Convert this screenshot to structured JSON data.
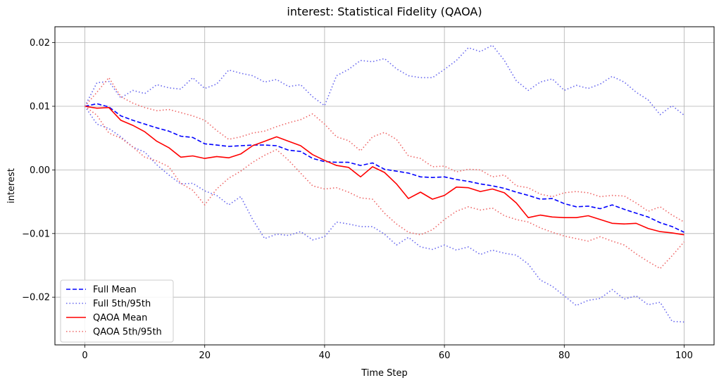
{
  "chart_data": {
    "type": "line",
    "title": "interest: Statistical Fidelity (QAOA)",
    "xlabel": "Time Step",
    "ylabel": "interest",
    "xlim": [
      -5,
      105
    ],
    "ylim": [
      -0.0275,
      0.0225
    ],
    "xticks": [
      0,
      20,
      40,
      60,
      80,
      100
    ],
    "xtick_labels": [
      "0",
      "20",
      "40",
      "60",
      "80",
      "100"
    ],
    "yticks": [
      -0.02,
      -0.01,
      0.0,
      0.01,
      0.02
    ],
    "ytick_labels": [
      "−0.02",
      "−0.01",
      "0.00",
      "0.01",
      "0.02"
    ],
    "grid": true,
    "legend_position": "lower-left",
    "series": [
      {
        "name": "Full Mean",
        "color": "#0000ff",
        "style": "dashed",
        "x": [
          0,
          2,
          4,
          6,
          8,
          10,
          12,
          14,
          16,
          18,
          20,
          22,
          24,
          26,
          28,
          30,
          32,
          34,
          36,
          38,
          40,
          42,
          44,
          46,
          48,
          50,
          52,
          54,
          56,
          58,
          60,
          62,
          64,
          66,
          68,
          70,
          72,
          74,
          76,
          78,
          80,
          82,
          84,
          86,
          88,
          90,
          92,
          94,
          96,
          98,
          100
        ],
        "values": [
          0.01,
          0.0104,
          0.0099,
          0.0085,
          0.0078,
          0.0072,
          0.0066,
          0.0061,
          0.0053,
          0.0051,
          0.0041,
          0.0039,
          0.0037,
          0.0038,
          0.0039,
          0.0039,
          0.0038,
          0.0031,
          0.0029,
          0.0018,
          0.0013,
          0.0012,
          0.0012,
          0.0007,
          0.0011,
          0.0001,
          -0.0002,
          -0.0005,
          -0.0011,
          -0.0012,
          -0.0011,
          -0.0015,
          -0.0018,
          -0.0022,
          -0.0025,
          -0.0029,
          -0.0035,
          -0.004,
          -0.0046,
          -0.0045,
          -0.0053,
          -0.0058,
          -0.0057,
          -0.0061,
          -0.0055,
          -0.0062,
          -0.0068,
          -0.0074,
          -0.0083,
          -0.0089,
          -0.0098
        ]
      },
      {
        "name": "Full 5th/95th",
        "color": "#6666ee",
        "style": "dotted",
        "x": [
          0,
          2,
          4,
          6,
          8,
          10,
          12,
          14,
          16,
          18,
          20,
          22,
          24,
          26,
          28,
          30,
          32,
          34,
          36,
          38,
          40,
          42,
          44,
          46,
          48,
          50,
          52,
          54,
          56,
          58,
          60,
          62,
          64,
          66,
          68,
          70,
          72,
          74,
          76,
          78,
          80,
          82,
          84,
          86,
          88,
          90,
          92,
          94,
          96,
          98,
          100
        ],
        "values": [
          0.01,
          0.0137,
          0.0139,
          0.0113,
          0.0125,
          0.012,
          0.0134,
          0.0129,
          0.0127,
          0.0145,
          0.0128,
          0.0135,
          0.0157,
          0.0152,
          0.0148,
          0.0138,
          0.0142,
          0.0131,
          0.0134,
          0.0115,
          0.0101,
          0.0148,
          0.0158,
          0.0172,
          0.017,
          0.0175,
          0.0159,
          0.0148,
          0.0145,
          0.0145,
          0.0158,
          0.0172,
          0.0192,
          0.0186,
          0.0196,
          0.0172,
          0.014,
          0.0125,
          0.0138,
          0.0143,
          0.0125,
          0.0133,
          0.0128,
          0.0135,
          0.0147,
          0.0138,
          0.0122,
          0.011,
          0.0087,
          0.0101,
          0.0086
        ],
        "values_lower": [
          0.01,
          0.0072,
          0.0065,
          0.0052,
          0.0036,
          0.0028,
          0.0008,
          -0.0008,
          -0.0022,
          -0.0021,
          -0.0033,
          -0.004,
          -0.0055,
          -0.0042,
          -0.0078,
          -0.0108,
          -0.0101,
          -0.0103,
          -0.0097,
          -0.011,
          -0.0105,
          -0.0082,
          -0.0085,
          -0.0089,
          -0.0089,
          -0.0101,
          -0.0118,
          -0.0106,
          -0.0121,
          -0.0125,
          -0.0118,
          -0.0126,
          -0.0121,
          -0.0133,
          -0.0126,
          -0.0131,
          -0.0134,
          -0.0148,
          -0.0173,
          -0.0183,
          -0.0198,
          -0.0213,
          -0.0205,
          -0.0202,
          -0.0188,
          -0.0203,
          -0.0198,
          -0.0212,
          -0.0208,
          -0.0238,
          -0.0239
        ]
      },
      {
        "name": "QAOA Mean",
        "color": "#ff0000",
        "style": "solid",
        "x": [
          0,
          2,
          4,
          6,
          8,
          10,
          12,
          14,
          16,
          18,
          20,
          22,
          24,
          26,
          28,
          30,
          32,
          34,
          36,
          38,
          40,
          42,
          44,
          46,
          48,
          50,
          52,
          54,
          56,
          58,
          60,
          62,
          64,
          66,
          68,
          70,
          72,
          74,
          76,
          78,
          80,
          82,
          84,
          86,
          88,
          90,
          92,
          94,
          96,
          98,
          100
        ],
        "values": [
          0.01,
          0.0097,
          0.0098,
          0.0078,
          0.007,
          0.006,
          0.0045,
          0.0035,
          0.002,
          0.0022,
          0.0018,
          0.0021,
          0.0019,
          0.0025,
          0.0038,
          0.0045,
          0.0052,
          0.0045,
          0.0038,
          0.0024,
          0.0015,
          0.0007,
          0.0004,
          -0.0011,
          0.0005,
          -0.0004,
          -0.0022,
          -0.0045,
          -0.0035,
          -0.0046,
          -0.004,
          -0.0027,
          -0.0028,
          -0.0034,
          -0.003,
          -0.0036,
          -0.0052,
          -0.0075,
          -0.0071,
          -0.0074,
          -0.0075,
          -0.0075,
          -0.0072,
          -0.0078,
          -0.0084,
          -0.0085,
          -0.0084,
          -0.0092,
          -0.0097,
          -0.0099,
          -0.0102
        ]
      },
      {
        "name": "QAOA 5th/95th",
        "color": "#ee6666",
        "style": "dotted",
        "x": [
          0,
          2,
          4,
          6,
          8,
          10,
          12,
          14,
          16,
          18,
          20,
          22,
          24,
          26,
          28,
          30,
          32,
          34,
          36,
          38,
          40,
          42,
          44,
          46,
          48,
          50,
          52,
          54,
          56,
          58,
          60,
          62,
          64,
          66,
          68,
          70,
          72,
          74,
          76,
          78,
          80,
          82,
          84,
          86,
          88,
          90,
          92,
          94,
          96,
          98,
          100
        ],
        "values": [
          0.01,
          0.0122,
          0.0145,
          0.0115,
          0.0105,
          0.0098,
          0.0093,
          0.0095,
          0.009,
          0.0085,
          0.0078,
          0.0062,
          0.0048,
          0.0052,
          0.0058,
          0.0061,
          0.0068,
          0.0074,
          0.0079,
          0.0088,
          0.0072,
          0.0052,
          0.0046,
          0.003,
          0.0052,
          0.0059,
          0.0048,
          0.0022,
          0.0018,
          0.0005,
          0.0006,
          -0.0003,
          0.0001,
          0.0,
          -0.0011,
          -0.0008,
          -0.0025,
          -0.0028,
          -0.0038,
          -0.0042,
          -0.0036,
          -0.0034,
          -0.0036,
          -0.0042,
          -0.004,
          -0.0041,
          -0.0052,
          -0.0065,
          -0.0058,
          -0.0071,
          -0.0082
        ],
        "values_lower": [
          0.01,
          0.0086,
          0.0058,
          0.005,
          0.0036,
          0.002,
          0.0014,
          0.0005,
          -0.0021,
          -0.0032,
          -0.0055,
          -0.003,
          -0.0013,
          -0.0002,
          0.0012,
          0.0023,
          0.0032,
          0.0015,
          -0.0005,
          -0.0025,
          -0.003,
          -0.0028,
          -0.0035,
          -0.0044,
          -0.0046,
          -0.0068,
          -0.0085,
          -0.0098,
          -0.0102,
          -0.0094,
          -0.0078,
          -0.0065,
          -0.0058,
          -0.0063,
          -0.006,
          -0.0072,
          -0.0078,
          -0.0082,
          -0.0091,
          -0.0098,
          -0.0104,
          -0.0108,
          -0.0112,
          -0.0105,
          -0.0112,
          -0.0118,
          -0.0132,
          -0.0144,
          -0.0155,
          -0.0135,
          -0.0113
        ]
      }
    ]
  }
}
